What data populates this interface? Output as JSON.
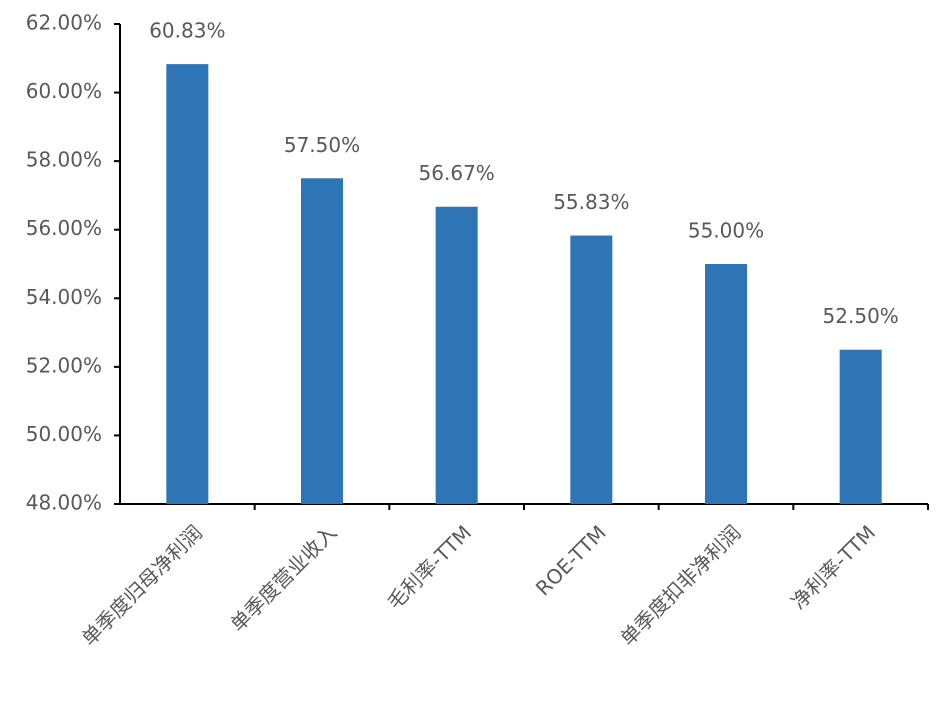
{
  "chart_data": {
    "type": "bar",
    "categories": [
      "单季度归母净利润",
      "单季度营业收入",
      "毛利率-TTM",
      "ROE-TTM",
      "单季度扣非净利润",
      "净利率-TTM"
    ],
    "values": [
      60.83,
      57.5,
      56.67,
      55.83,
      55.0,
      52.5
    ],
    "value_labels": [
      "60.83%",
      "57.50%",
      "56.67%",
      "55.83%",
      "55.00%",
      "52.50%"
    ],
    "color": "#2e75b6",
    "ylim": [
      48,
      62
    ],
    "yticks": [
      {
        "value": 48,
        "label": "48.00%"
      },
      {
        "value": 50,
        "label": "50.00%"
      },
      {
        "value": 52,
        "label": "52.00%"
      },
      {
        "value": 54,
        "label": "54.00%"
      },
      {
        "value": 56,
        "label": "56.00%"
      },
      {
        "value": 58,
        "label": "58.00%"
      },
      {
        "value": 60,
        "label": "60.00%"
      },
      {
        "value": 62,
        "label": "62.00%"
      }
    ],
    "grid": false
  }
}
